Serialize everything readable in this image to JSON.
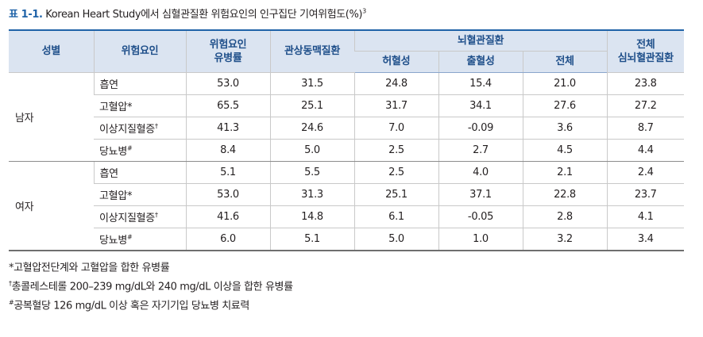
{
  "title": {
    "label": "표 1-1.",
    "text": " Korean Heart Study에서 심혈관질환 위험요인의 인구집단 기여위험도(%)",
    "sup": "3"
  },
  "table": {
    "headers": {
      "sex": "성별",
      "risk_factor": "위험요인",
      "prevalence_line1": "위험요인",
      "prevalence_line2": "유병률",
      "coronary": "관상동맥질환",
      "cerebro_group": "뇌혈관질환",
      "ischemic": "허혈성",
      "hemorrhagic": "출혈성",
      "cerebro_total": "전체",
      "overall_line1": "전체",
      "overall_line2": "심뇌혈관질환"
    },
    "groups": [
      {
        "sex": "남자",
        "rows": [
          {
            "factor": "흡연",
            "mark": "",
            "prevalence": "53.0",
            "coronary": "31.5",
            "ischemic": "24.8",
            "hemorrhagic": "15.4",
            "cerebro_total": "21.0",
            "overall": "23.8"
          },
          {
            "factor": "고혈압*",
            "mark": "",
            "prevalence": "65.5",
            "coronary": "25.1",
            "ischemic": "31.7",
            "hemorrhagic": "34.1",
            "cerebro_total": "27.6",
            "overall": "27.2"
          },
          {
            "factor": "이상지질혈증",
            "mark": "†",
            "prevalence": "41.3",
            "coronary": "24.6",
            "ischemic": "7.0",
            "hemorrhagic": "-0.09",
            "cerebro_total": "3.6",
            "overall": "8.7"
          },
          {
            "factor": "당뇨병",
            "mark": "#",
            "prevalence": "8.4",
            "coronary": "5.0",
            "ischemic": "2.5",
            "hemorrhagic": "2.7",
            "cerebro_total": "4.5",
            "overall": "4.4"
          }
        ]
      },
      {
        "sex": "여자",
        "rows": [
          {
            "factor": "흡연",
            "mark": "",
            "prevalence": "5.1",
            "coronary": "5.5",
            "ischemic": "2.5",
            "hemorrhagic": "4.0",
            "cerebro_total": "2.1",
            "overall": "2.4"
          },
          {
            "factor": "고혈압*",
            "mark": "",
            "prevalence": "53.0",
            "coronary": "31.3",
            "ischemic": "25.1",
            "hemorrhagic": "37.1",
            "cerebro_total": "22.8",
            "overall": "23.7"
          },
          {
            "factor": "이상지질혈증",
            "mark": "†",
            "prevalence": "41.6",
            "coronary": "14.8",
            "ischemic": "6.1",
            "hemorrhagic": "-0.05",
            "cerebro_total": "2.8",
            "overall": "4.1"
          },
          {
            "factor": "당뇨병",
            "mark": "#",
            "prevalence": "6.0",
            "coronary": "5.1",
            "ischemic": "5.0",
            "hemorrhagic": "1.0",
            "cerebro_total": "3.2",
            "overall": "3.4"
          }
        ]
      }
    ]
  },
  "notes": [
    {
      "mark": "",
      "text": "*고혈압전단계와 고혈압을 합한 유병률"
    },
    {
      "mark": "†",
      "text": "총콜레스테롤 200–239 mg/dL와 240 mg/dL 이상을 합한 유병률"
    },
    {
      "mark": "#",
      "text": "공복혈당 126 mg/dL 이상 혹은 자기기입 당뇨병 치료력"
    }
  ]
}
